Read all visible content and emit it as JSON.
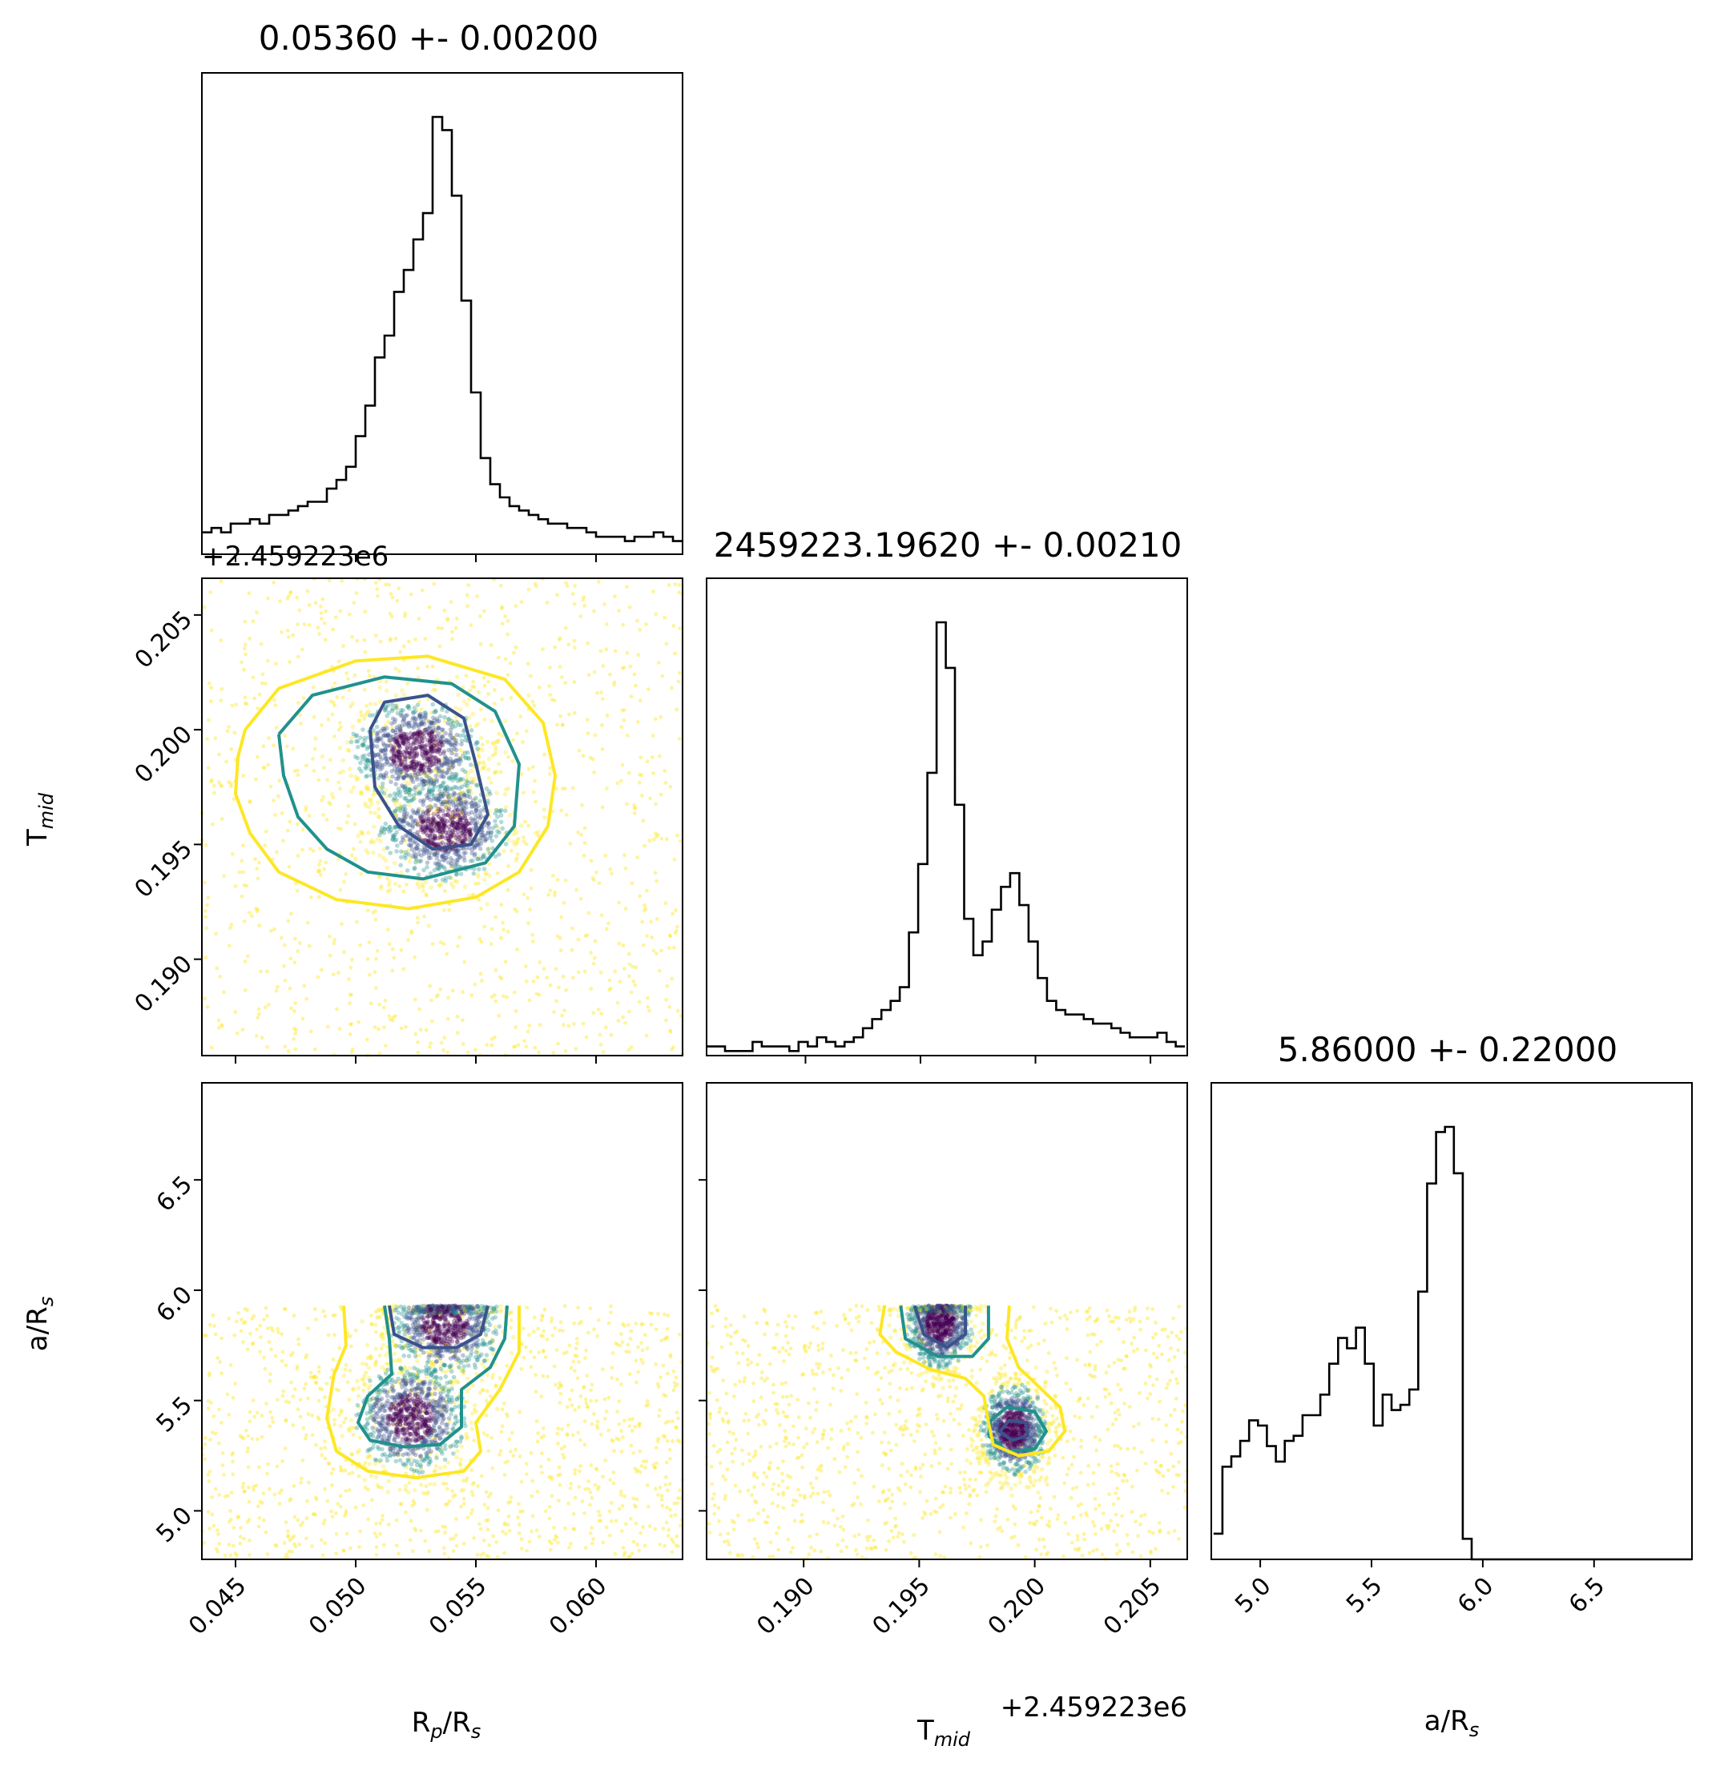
{
  "chart_data": [
    {
      "type": "histogram",
      "panel": "hist-rp",
      "title": "0.05360 +- 0.00200",
      "xlim": [
        0.0436,
        0.0636
      ],
      "bin_centers": [
        0.0438,
        0.0442,
        0.0446,
        0.045,
        0.0454,
        0.0458,
        0.0462,
        0.0466,
        0.047,
        0.0474,
        0.0478,
        0.0482,
        0.0486,
        0.049,
        0.0494,
        0.0498,
        0.0502,
        0.0506,
        0.051,
        0.0514,
        0.0518,
        0.0522,
        0.0526,
        0.053,
        0.0534,
        0.0538,
        0.0542,
        0.0546,
        0.055,
        0.0554,
        0.0558,
        0.0562,
        0.0566,
        0.057,
        0.0574,
        0.0578,
        0.0582,
        0.0586,
        0.059,
        0.0594,
        0.0598,
        0.0602,
        0.0606,
        0.061,
        0.0614,
        0.0618,
        0.0622,
        0.0626,
        0.063,
        0.0634
      ],
      "counts": [
        5,
        6,
        5,
        7,
        7,
        8,
        7,
        9,
        9,
        10,
        11,
        12,
        12,
        15,
        17,
        20,
        27,
        34,
        45,
        50,
        60,
        65,
        72,
        78,
        100,
        97,
        82,
        58,
        37,
        22,
        16,
        13,
        11,
        10,
        9,
        8,
        7,
        7,
        6,
        6,
        5,
        4,
        4,
        4,
        3,
        4,
        4,
        5,
        4,
        3
      ]
    },
    {
      "type": "histogram",
      "panel": "hist-tmid",
      "title": "2459223.19620 +- 0.00210",
      "xlim": [
        0.1857,
        0.2066
      ],
      "bin_centers": [
        0.1859,
        0.1863,
        0.1867,
        0.1871,
        0.1875,
        0.1879,
        0.1883,
        0.1887,
        0.1891,
        0.1895,
        0.1899,
        0.1903,
        0.1907,
        0.1911,
        0.1915,
        0.1919,
        0.1923,
        0.1927,
        0.1931,
        0.1935,
        0.1939,
        0.1943,
        0.1947,
        0.1951,
        0.1955,
        0.1959,
        0.1963,
        0.1967,
        0.1971,
        0.1975,
        0.1979,
        0.1983,
        0.1987,
        0.1991,
        0.1995,
        0.1999,
        0.2003,
        0.2007,
        0.2011,
        0.2015,
        0.2019,
        0.2023,
        0.2027,
        0.2031,
        0.2035,
        0.2039,
        0.2043,
        0.2047,
        0.2051,
        0.2055,
        0.2059,
        0.2063
      ],
      "counts": [
        2,
        2,
        1,
        1,
        1,
        3,
        2,
        2,
        2,
        1,
        3,
        2,
        4,
        3,
        2,
        3,
        4,
        6,
        8,
        10,
        12,
        15,
        27,
        42,
        62,
        95,
        85,
        55,
        30,
        22,
        25,
        32,
        37,
        40,
        33,
        25,
        17,
        12,
        10,
        9,
        9,
        8,
        7,
        7,
        6,
        5,
        4,
        4,
        4,
        5,
        3,
        2
      ]
    },
    {
      "type": "histogram",
      "panel": "hist-ars",
      "title": "5.86000 +- 0.22000",
      "xlim": [
        4.78,
        6.94
      ],
      "bin_centers": [
        4.81,
        4.85,
        4.89,
        4.93,
        4.97,
        5.01,
        5.05,
        5.09,
        5.13,
        5.17,
        5.21,
        5.25,
        5.29,
        5.33,
        5.37,
        5.41,
        5.45,
        5.49,
        5.53,
        5.57,
        5.61,
        5.65,
        5.69,
        5.73,
        5.77,
        5.81,
        5.85,
        5.89,
        5.93,
        5.97,
        6.01,
        6.1,
        6.3,
        6.5,
        6.7,
        6.9
      ],
      "counts": [
        5,
        18,
        20,
        23,
        27,
        26,
        22,
        19,
        23,
        24,
        28,
        28,
        32,
        38,
        43,
        41,
        45,
        38,
        26,
        32,
        29,
        30,
        33,
        52,
        73,
        83,
        84,
        75,
        4,
        0,
        0,
        0,
        0,
        0,
        0,
        0
      ]
    },
    {
      "type": "scatter",
      "panel": "scatter-rp-tmid",
      "xlim": [
        0.0436,
        0.0636
      ],
      "ylim": [
        0.1858,
        0.2066
      ],
      "xlabel": "",
      "ylabel": "Tmid",
      "point_count_estimate": 4000,
      "dense_clusters": [
        {
          "x": 0.0537,
          "y": 0.1957
        },
        {
          "x": 0.0525,
          "y": 0.1991
        }
      ],
      "contours": [
        {
          "level": "inner",
          "color": "#3b528b",
          "points": [
            [
              0.0506,
              0.2
            ],
            [
              0.0512,
              0.2012
            ],
            [
              0.053,
              0.2015
            ],
            [
              0.0545,
              0.2005
            ],
            [
              0.055,
              0.1985
            ],
            [
              0.0555,
              0.1963
            ],
            [
              0.0548,
              0.195
            ],
            [
              0.0532,
              0.1948
            ],
            [
              0.0518,
              0.1958
            ],
            [
              0.0508,
              0.1975
            ],
            [
              0.0506,
              0.2
            ]
          ]
        },
        {
          "level": "middle",
          "color": "#21918c",
          "points": [
            [
              0.0468,
              0.1998
            ],
            [
              0.0482,
              0.2015
            ],
            [
              0.0512,
              0.2023
            ],
            [
              0.054,
              0.202
            ],
            [
              0.0558,
              0.2008
            ],
            [
              0.0568,
              0.1985
            ],
            [
              0.0566,
              0.1958
            ],
            [
              0.0554,
              0.1942
            ],
            [
              0.0528,
              0.1935
            ],
            [
              0.0505,
              0.1938
            ],
            [
              0.0488,
              0.1948
            ],
            [
              0.0476,
              0.1962
            ],
            [
              0.047,
              0.198
            ],
            [
              0.0468,
              0.1998
            ]
          ]
        },
        {
          "level": "outer",
          "color": "#fde725",
          "points": [
            [
              0.0454,
              0.2
            ],
            [
              0.0468,
              0.2018
            ],
            [
              0.05,
              0.203
            ],
            [
              0.053,
              0.2032
            ],
            [
              0.0562,
              0.2022
            ],
            [
              0.0578,
              0.2003
            ],
            [
              0.0583,
              0.198
            ],
            [
              0.058,
              0.1958
            ],
            [
              0.0568,
              0.1938
            ],
            [
              0.055,
              0.1927
            ],
            [
              0.0522,
              0.1922
            ],
            [
              0.0492,
              0.1926
            ],
            [
              0.0468,
              0.1938
            ],
            [
              0.0456,
              0.1955
            ],
            [
              0.045,
              0.1972
            ],
            [
              0.0451,
              0.1988
            ],
            [
              0.0454,
              0.2
            ]
          ]
        }
      ]
    },
    {
      "type": "scatter",
      "panel": "scatter-rp-ars",
      "xlim": [
        0.0436,
        0.0636
      ],
      "ylim": [
        4.78,
        6.94
      ],
      "xlabel": "Rp/Rs",
      "ylabel": "a/Rs",
      "point_count_estimate": 4000,
      "dense_clusters": [
        {
          "x": 0.0537,
          "y": 5.85
        },
        {
          "x": 0.0523,
          "y": 5.42
        }
      ],
      "contours": [
        {
          "level": "inner-top",
          "color": "#3b528b",
          "points": [
            [
              0.0514,
              5.93
            ],
            [
              0.0516,
              5.8
            ],
            [
              0.0528,
              5.74
            ],
            [
              0.0542,
              5.74
            ],
            [
              0.0552,
              5.8
            ],
            [
              0.0555,
              5.93
            ]
          ]
        },
        {
          "level": "middle",
          "color": "#21918c",
          "points": [
            [
              0.0512,
              5.93
            ],
            [
              0.0514,
              5.78
            ],
            [
              0.0515,
              5.62
            ],
            [
              0.0505,
              5.52
            ],
            [
              0.0501,
              5.4
            ],
            [
              0.0506,
              5.32
            ],
            [
              0.052,
              5.29
            ],
            [
              0.0535,
              5.3
            ],
            [
              0.0544,
              5.38
            ],
            [
              0.0544,
              5.55
            ],
            [
              0.0556,
              5.65
            ],
            [
              0.0562,
              5.78
            ],
            [
              0.0563,
              5.93
            ]
          ]
        },
        {
          "level": "outer",
          "color": "#fde725",
          "points": [
            [
              0.0495,
              5.93
            ],
            [
              0.0496,
              5.75
            ],
            [
              0.0491,
              5.62
            ],
            [
              0.0488,
              5.42
            ],
            [
              0.0492,
              5.27
            ],
            [
              0.0505,
              5.18
            ],
            [
              0.0525,
              5.15
            ],
            [
              0.0545,
              5.18
            ],
            [
              0.0552,
              5.27
            ],
            [
              0.055,
              5.4
            ],
            [
              0.056,
              5.55
            ],
            [
              0.0568,
              5.72
            ],
            [
              0.0568,
              5.93
            ]
          ]
        }
      ]
    },
    {
      "type": "scatter",
      "panel": "scatter-tmid-ars",
      "xlim": [
        0.1858,
        0.2066
      ],
      "ylim": [
        4.78,
        6.94
      ],
      "xlabel": "Tmid",
      "ylabel": "",
      "x_offset_label": "+2.459223e6",
      "point_count_estimate": 4000,
      "dense_clusters": [
        {
          "x": 0.1959,
          "y": 5.85
        },
        {
          "x": 0.1991,
          "y": 5.37
        }
      ],
      "contours": [
        {
          "level": "inner-top",
          "color": "#3b528b",
          "points": [
            [
              0.1948,
              5.93
            ],
            [
              0.1952,
              5.8
            ],
            [
              0.1962,
              5.74
            ],
            [
              0.197,
              5.8
            ],
            [
              0.197,
              5.93
            ]
          ]
        },
        {
          "level": "inner-bottom",
          "color": "#3b528b",
          "points": [
            [
              0.1985,
              5.36
            ],
            [
              0.199,
              5.32
            ],
            [
              0.1997,
              5.34
            ],
            [
              0.1996,
              5.4
            ],
            [
              0.1989,
              5.41
            ],
            [
              0.1985,
              5.36
            ]
          ]
        },
        {
          "level": "middle-top",
          "color": "#21918c",
          "points": [
            [
              0.1942,
              5.93
            ],
            [
              0.1944,
              5.78
            ],
            [
              0.1958,
              5.7
            ],
            [
              0.1973,
              5.7
            ],
            [
              0.198,
              5.78
            ],
            [
              0.198,
              5.93
            ]
          ]
        },
        {
          "level": "middle-bottom",
          "color": "#21918c",
          "points": [
            [
              0.198,
              5.34
            ],
            [
              0.1988,
              5.27
            ],
            [
              0.2,
              5.28
            ],
            [
              0.2005,
              5.36
            ],
            [
              0.2,
              5.45
            ],
            [
              0.1988,
              5.47
            ],
            [
              0.1981,
              5.41
            ],
            [
              0.198,
              5.34
            ]
          ]
        },
        {
          "level": "outer",
          "color": "#fde725",
          "points": [
            [
              0.1935,
              5.93
            ],
            [
              0.1933,
              5.8
            ],
            [
              0.194,
              5.72
            ],
            [
              0.1955,
              5.64
            ],
            [
              0.197,
              5.6
            ],
            [
              0.1978,
              5.52
            ],
            [
              0.198,
              5.4
            ],
            [
              0.1982,
              5.3
            ],
            [
              0.1993,
              5.25
            ],
            [
              0.2006,
              5.27
            ],
            [
              0.2013,
              5.36
            ],
            [
              0.2011,
              5.47
            ],
            [
              0.2002,
              5.56
            ],
            [
              0.1993,
              5.65
            ],
            [
              0.1988,
              5.78
            ],
            [
              0.1989,
              5.93
            ]
          ]
        }
      ]
    }
  ],
  "axes": {
    "rp_ticks": [
      "0.045",
      "0.050",
      "0.055",
      "0.060"
    ],
    "rp_tick_values": [
      0.045,
      0.05,
      0.055,
      0.06
    ],
    "tmid_ticks": [
      "0.190",
      "0.195",
      "0.200",
      "0.205"
    ],
    "tmid_tick_values": [
      0.19,
      0.195,
      0.2,
      0.205
    ],
    "ars_ticks": [
      "5.0",
      "5.5",
      "6.0",
      "6.5"
    ],
    "ars_tick_values": [
      5.0,
      5.5,
      6.0,
      6.5
    ],
    "xlabel_rp": "R",
    "xlabel_rp_sub": "p",
    "xlabel_rp_tail": "/R",
    "xlabel_rp_sub2": "s",
    "xlabel_tmid": "T",
    "xlabel_tmid_sub": "mid",
    "xlabel_ars": "a/R",
    "xlabel_ars_sub": "s",
    "ylabel_tmid": "T",
    "ylabel_tmid_sub": "mid",
    "ylabel_ars": "a/R",
    "ylabel_ars_sub": "s",
    "offset_tmid_y": "+2.459223e6",
    "offset_tmid_x": "+2.459223e6"
  },
  "colors": {
    "viridis_inner": "#3b528b",
    "viridis_middle": "#21918c",
    "viridis_outer": "#fde725",
    "dense_point": "#440154",
    "histogram": "#000000"
  }
}
